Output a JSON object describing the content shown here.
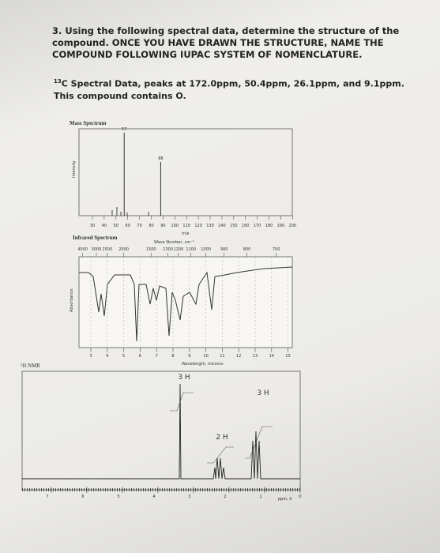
{
  "question": "3. Using the following spectral data, determine the structure of the compound. ONCE YOU HAVE DRAWN THE STRUCTURE, NAME THE COMPOUND FOLLOWING IUPAC SYSTEM OF NOMENCLATURE.",
  "carbon": {
    "superscript": "13",
    "text": "C Spectral Data, peaks at 172.0ppm, 50.4ppm, 26.1ppm, and 9.1ppm."
  },
  "note": "This compound contains O.",
  "mass_spectrum": {
    "title": "Mass Spectrum",
    "y_label": "Intensity",
    "peak_labels": [
      57,
      88
    ],
    "x_ticks": [
      30,
      40,
      50,
      60,
      70,
      80,
      90,
      100,
      110,
      120,
      130,
      140,
      150,
      160,
      170,
      180,
      190,
      200
    ],
    "x_label": "m/e"
  },
  "ir_spectrum": {
    "title": "Infrared Spectrum",
    "top_label": "Wave Number, cm⁻¹",
    "top_ticks": [
      4000,
      3000,
      2500,
      2000,
      1500,
      1300,
      1200,
      1100,
      1000,
      900,
      800,
      700
    ],
    "y_label": "Absorbance",
    "bottom_ticks": [
      3,
      4,
      5,
      6,
      7,
      8,
      9,
      10,
      11,
      12,
      13,
      14,
      15
    ],
    "bottom_label": "Wavelength, microns"
  },
  "nmr_spectrum": {
    "title": "¹H NMR",
    "integrations": [
      "3 H",
      "2 H",
      "3 H"
    ],
    "x_ticks": [
      7,
      6,
      5,
      4,
      3,
      2,
      1,
      0
    ],
    "x_label": "ppm, δ"
  }
}
